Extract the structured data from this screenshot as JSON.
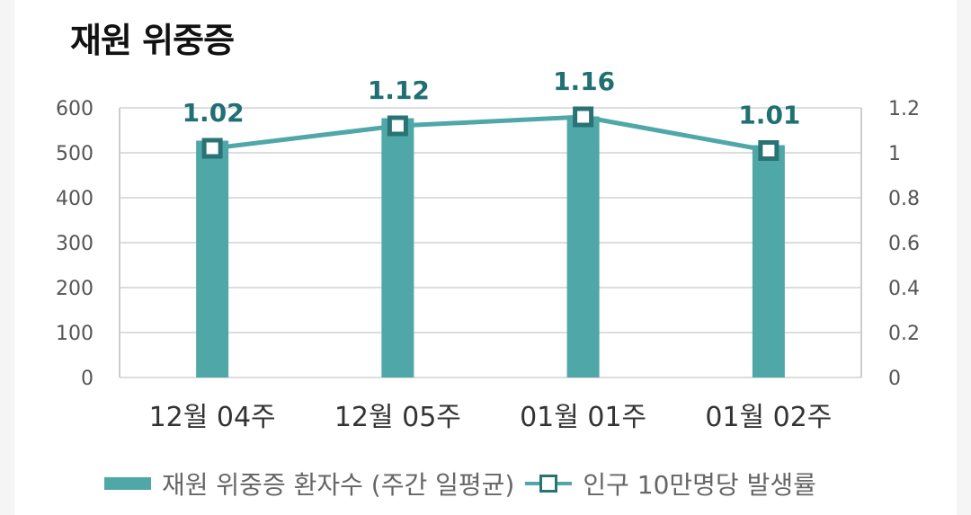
{
  "title": "재원 위중증",
  "chart_data": {
    "type": "bar+line",
    "categories": [
      "12월 04주",
      "12월 05주",
      "01월 01주",
      "01월 02주"
    ],
    "series": [
      {
        "name": "재원 위중증 환자수 (주간 일평균)",
        "type": "bar",
        "axis": "left",
        "values": [
          527,
          577,
          581,
          517
        ],
        "color": "#4fa7a8"
      },
      {
        "name": "인구 10만명당 발생률",
        "type": "line",
        "axis": "right",
        "values": [
          1.02,
          1.12,
          1.16,
          1.01
        ],
        "labels": [
          "1.02",
          "1.12",
          "1.16",
          "1.01"
        ],
        "color": "#4fa7a8",
        "marker_color": "#2a7374"
      }
    ],
    "y_left": {
      "min": 0,
      "max": 600,
      "ticks": [
        "0",
        "100",
        "200",
        "300",
        "400",
        "500",
        "600"
      ]
    },
    "y_right": {
      "min": 0,
      "max": 1.2,
      "ticks": [
        "0",
        "0.2",
        "0.4",
        "0.6",
        "0.8",
        "1",
        "1.2"
      ]
    },
    "grid": true,
    "legend_position": "bottom"
  },
  "legend": {
    "bar_label": "재원 위중증 환자수 (주간 일평균)",
    "line_label": "인구 10만명당 발생률"
  }
}
